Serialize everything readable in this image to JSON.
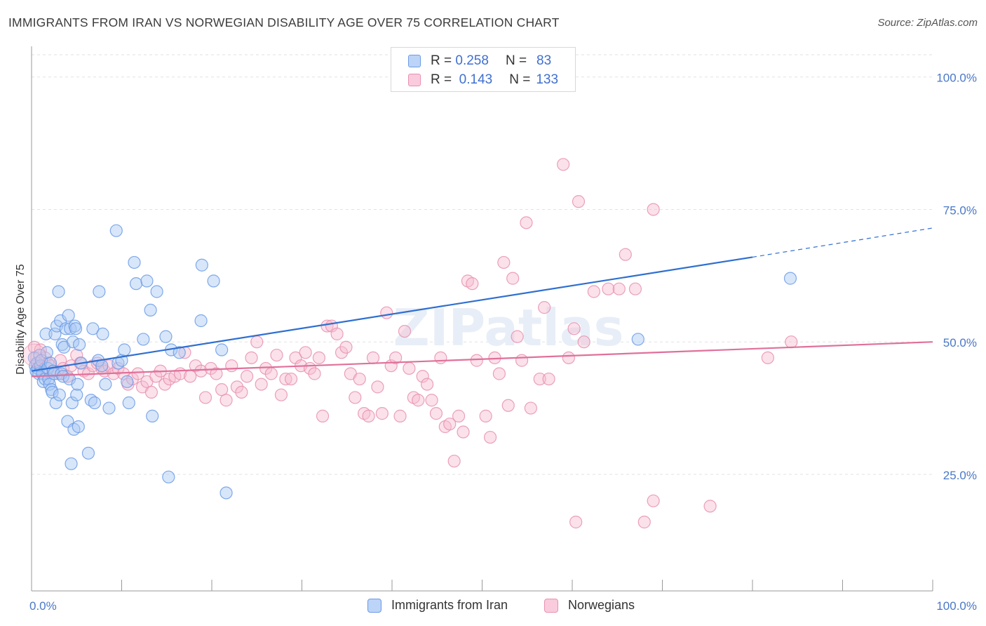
{
  "title": "IMMIGRANTS FROM IRAN VS NORWEGIAN DISABILITY AGE OVER 75 CORRELATION CHART",
  "source": "Source: ZipAtlas.com",
  "watermark": "ZIPatlas",
  "colors": {
    "blue": "#6b9be6",
    "blue_fill": "#a9c8f5",
    "blue_line": "#2f6fd0",
    "pink": "#e891b0",
    "pink_fill": "#f6bdd0",
    "pink_line": "#e0709a",
    "axis_label": "#4a78c8"
  },
  "legend": {
    "rows": [
      {
        "r_label": "R =",
        "r_value": "0.258",
        "n_label": "N =",
        "n_value": "83"
      },
      {
        "r_label": "R =",
        "r_value": "0.143",
        "n_label": "N =",
        "n_value": "133"
      }
    ]
  },
  "chart_data": {
    "type": "scatter",
    "title": "IMMIGRANTS FROM IRAN VS NORWEGIAN DISABILITY AGE OVER 75 CORRELATION CHART",
    "xlabel": "",
    "ylabel": "Disability Age Over 75",
    "xlim": [
      0,
      100
    ],
    "ylim": [
      3,
      105
    ],
    "x_tick_labels": [
      "0.0%",
      "100.0%"
    ],
    "y_tick_labels": [
      "100.0%",
      "75.0%",
      "50.0%",
      "25.0%"
    ],
    "y_ticks": [
      100,
      75,
      50,
      25
    ],
    "grid": true,
    "legend_position": "top-center",
    "series": [
      {
        "name": "Immigrants from Iran",
        "color": "#6b9be6",
        "trend": {
          "x": [
            0,
            80
          ],
          "y": [
            44.5,
            66
          ],
          "dashed_to": [
            100,
            71.5
          ]
        },
        "points": [
          [
            0.3,
            47
          ],
          [
            0.4,
            45.5
          ],
          [
            0.5,
            44.5
          ],
          [
            0.6,
            46
          ],
          [
            0.7,
            45
          ],
          [
            0.8,
            44
          ],
          [
            0.9,
            47.5
          ],
          [
            1.0,
            45.5
          ],
          [
            1.1,
            46.5
          ],
          [
            1.2,
            44
          ],
          [
            1.3,
            42.5
          ],
          [
            1.5,
            43
          ],
          [
            1.6,
            51.5
          ],
          [
            1.7,
            48
          ],
          [
            1.8,
            45
          ],
          [
            1.9,
            43
          ],
          [
            2.0,
            42
          ],
          [
            2.1,
            46
          ],
          [
            2.2,
            41
          ],
          [
            2.3,
            40.5
          ],
          [
            2.4,
            44.5
          ],
          [
            2.5,
            44
          ],
          [
            2.6,
            51.5
          ],
          [
            2.7,
            38.5
          ],
          [
            2.8,
            53
          ],
          [
            3.0,
            59.5
          ],
          [
            3.1,
            40
          ],
          [
            3.2,
            54
          ],
          [
            3.3,
            44
          ],
          [
            3.4,
            49.5
          ],
          [
            3.5,
            43.5
          ],
          [
            3.6,
            49
          ],
          [
            3.8,
            52.5
          ],
          [
            4.0,
            35
          ],
          [
            4.1,
            55
          ],
          [
            4.2,
            43
          ],
          [
            4.3,
            52.5
          ],
          [
            4.4,
            27
          ],
          [
            4.5,
            38.5
          ],
          [
            4.6,
            50
          ],
          [
            4.7,
            33.5
          ],
          [
            4.8,
            53
          ],
          [
            4.9,
            52.5
          ],
          [
            5.0,
            40
          ],
          [
            5.1,
            42
          ],
          [
            5.2,
            34
          ],
          [
            5.3,
            49.5
          ],
          [
            5.5,
            46
          ],
          [
            6.3,
            29
          ],
          [
            6.6,
            39
          ],
          [
            6.8,
            52.5
          ],
          [
            7.0,
            38.5
          ],
          [
            7.4,
            46.5
          ],
          [
            7.5,
            59.5
          ],
          [
            7.8,
            45.5
          ],
          [
            7.9,
            51.5
          ],
          [
            8.2,
            42
          ],
          [
            8.6,
            37.5
          ],
          [
            9.4,
            71
          ],
          [
            9.6,
            46
          ],
          [
            10.0,
            46.5
          ],
          [
            10.3,
            48.5
          ],
          [
            10.6,
            42.5
          ],
          [
            10.8,
            38.5
          ],
          [
            11.4,
            65
          ],
          [
            11.6,
            61
          ],
          [
            12.4,
            50.5
          ],
          [
            12.8,
            61.5
          ],
          [
            13.2,
            56
          ],
          [
            13.4,
            36
          ],
          [
            13.9,
            59.5
          ],
          [
            14.9,
            51
          ],
          [
            15.2,
            24.5
          ],
          [
            15.5,
            48.5
          ],
          [
            16.4,
            48
          ],
          [
            18.8,
            54
          ],
          [
            18.9,
            64.5
          ],
          [
            20.2,
            61.5
          ],
          [
            21.1,
            48.5
          ],
          [
            21.6,
            21.5
          ],
          [
            67.3,
            50.5
          ],
          [
            84.2,
            62
          ]
        ]
      },
      {
        "name": "Norwegians",
        "color": "#e891b0",
        "trend": {
          "x": [
            0,
            100
          ],
          "y": [
            43.5,
            50
          ]
        },
        "points": [
          [
            0.3,
            49
          ],
          [
            0.5,
            47
          ],
          [
            0.8,
            45.5
          ],
          [
            1.0,
            48.5
          ],
          [
            1.3,
            44
          ],
          [
            1.5,
            47
          ],
          [
            1.8,
            46
          ],
          [
            2.1,
            45.5
          ],
          [
            2.4,
            44.5
          ],
          [
            2.9,
            44
          ],
          [
            3.2,
            46.5
          ],
          [
            3.5,
            45
          ],
          [
            4.0,
            43.5
          ],
          [
            4.4,
            45.5
          ],
          [
            5.0,
            47.5
          ],
          [
            5.4,
            46
          ],
          [
            5.8,
            44.5
          ],
          [
            6.3,
            44
          ],
          [
            6.8,
            45.5
          ],
          [
            7.3,
            46
          ],
          [
            7.8,
            45
          ],
          [
            8.1,
            44.5
          ],
          [
            8.6,
            45.5
          ],
          [
            9.1,
            44
          ],
          [
            9.6,
            45
          ],
          [
            10.2,
            44
          ],
          [
            10.7,
            42
          ],
          [
            11.2,
            43
          ],
          [
            11.8,
            44
          ],
          [
            12.3,
            41.5
          ],
          [
            12.8,
            42.5
          ],
          [
            13.3,
            40.5
          ],
          [
            13.8,
            43.5
          ],
          [
            14.3,
            44.5
          ],
          [
            14.8,
            42
          ],
          [
            15.3,
            43
          ],
          [
            15.9,
            43.5
          ],
          [
            16.5,
            44
          ],
          [
            17.0,
            48
          ],
          [
            17.6,
            43.5
          ],
          [
            18.2,
            45.5
          ],
          [
            18.8,
            44.5
          ],
          [
            19.3,
            39.5
          ],
          [
            19.9,
            45
          ],
          [
            20.5,
            44
          ],
          [
            21.1,
            41
          ],
          [
            21.6,
            39
          ],
          [
            22.2,
            45.5
          ],
          [
            22.8,
            41.5
          ],
          [
            23.3,
            40.5
          ],
          [
            23.9,
            43.5
          ],
          [
            24.4,
            47
          ],
          [
            25.0,
            50
          ],
          [
            25.5,
            42
          ],
          [
            26.0,
            45
          ],
          [
            26.6,
            44
          ],
          [
            27.2,
            47.5
          ],
          [
            27.7,
            40
          ],
          [
            28.2,
            43
          ],
          [
            28.8,
            43
          ],
          [
            29.3,
            47
          ],
          [
            29.9,
            45.5
          ],
          [
            30.4,
            48
          ],
          [
            30.9,
            45
          ],
          [
            31.4,
            44
          ],
          [
            31.9,
            47
          ],
          [
            32.3,
            36
          ],
          [
            32.8,
            53
          ],
          [
            33.3,
            53
          ],
          [
            33.9,
            51.5
          ],
          [
            34.4,
            48
          ],
          [
            34.9,
            49
          ],
          [
            35.4,
            44
          ],
          [
            35.9,
            39.5
          ],
          [
            36.4,
            43
          ],
          [
            36.9,
            36.5
          ],
          [
            37.4,
            36
          ],
          [
            37.9,
            47
          ],
          [
            38.4,
            41.5
          ],
          [
            38.9,
            36.5
          ],
          [
            39.4,
            55.5
          ],
          [
            39.9,
            45.5
          ],
          [
            40.4,
            47
          ],
          [
            40.9,
            36
          ],
          [
            41.4,
            52
          ],
          [
            41.9,
            45
          ],
          [
            42.4,
            39.5
          ],
          [
            42.9,
            39
          ],
          [
            43.4,
            43.5
          ],
          [
            43.9,
            42
          ],
          [
            44.4,
            39
          ],
          [
            44.9,
            36.5
          ],
          [
            45.4,
            47
          ],
          [
            45.9,
            34
          ],
          [
            46.4,
            34.5
          ],
          [
            46.9,
            27.5
          ],
          [
            47.4,
            36
          ],
          [
            47.9,
            33
          ],
          [
            48.4,
            61.5
          ],
          [
            48.9,
            61
          ],
          [
            49.4,
            46.5
          ],
          [
            50.4,
            36
          ],
          [
            50.9,
            32
          ],
          [
            51.4,
            47
          ],
          [
            51.9,
            44
          ],
          [
            52.4,
            65
          ],
          [
            52.9,
            38
          ],
          [
            53.4,
            62
          ],
          [
            53.9,
            51
          ],
          [
            54.4,
            46.5
          ],
          [
            54.9,
            72.5
          ],
          [
            55.4,
            37.5
          ],
          [
            56.4,
            43
          ],
          [
            56.9,
            56.5
          ],
          [
            57.4,
            43
          ],
          [
            59.0,
            83.5
          ],
          [
            59.6,
            47
          ],
          [
            60.2,
            52.5
          ],
          [
            60.7,
            76.5
          ],
          [
            61.3,
            50
          ],
          [
            62.4,
            59.5
          ],
          [
            64.0,
            60
          ],
          [
            65.2,
            60
          ],
          [
            65.9,
            66.5
          ],
          [
            67.0,
            60
          ],
          [
            69.0,
            75
          ],
          [
            60.4,
            16
          ],
          [
            69.0,
            20
          ],
          [
            75.3,
            19
          ],
          [
            81.7,
            47
          ],
          [
            84.3,
            50
          ],
          [
            68.0,
            16
          ]
        ]
      }
    ]
  },
  "bottom_legend": [
    {
      "label": "Immigrants from Iran"
    },
    {
      "label": "Norwegians"
    }
  ]
}
